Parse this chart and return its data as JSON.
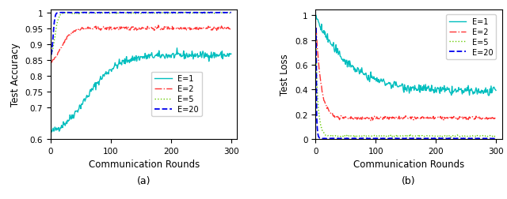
{
  "fig_width": 6.4,
  "fig_height": 2.53,
  "dpi": 100,
  "seed": 42,
  "n_rounds": 300,
  "colors": {
    "E1": "#00BEBE",
    "E2": "#FF3333",
    "E5": "#66CC00",
    "E20": "#0000EE"
  },
  "linestyles": {
    "E1": "-",
    "E2": "-.",
    "E5": ":",
    "E20": "--"
  },
  "linewidths": {
    "E1": 1.0,
    "E2": 1.0,
    "E5": 1.0,
    "E20": 1.3
  },
  "acc_ylim": [
    0.6,
    1.01
  ],
  "acc_yticks": [
    0.6,
    0.7,
    0.75,
    0.8,
    0.85,
    0.9,
    0.95,
    1.0
  ],
  "acc_yticklabels": [
    "0.6",
    "0.7",
    "0.75",
    "0.8",
    "0.85",
    "0.9",
    "0.95",
    "1"
  ],
  "loss_ylim": [
    0.0,
    1.05
  ],
  "loss_yticks": [
    0.0,
    0.2,
    0.4,
    0.6,
    0.8,
    1.0
  ],
  "loss_yticklabels": [
    "0",
    "0.2",
    "0.4",
    "0.6",
    "0.8",
    "1"
  ],
  "xlim": [
    0,
    310
  ],
  "xticks": [
    0,
    100,
    200,
    300
  ],
  "xlabel": "Communication Rounds",
  "ylabel_acc": "Test Accuracy",
  "ylabel_loss": "Test Loss",
  "label_a": "(a)",
  "label_b": "(b)",
  "legend_labels": [
    "E=1",
    "E=2",
    "E=5",
    "E=20"
  ]
}
